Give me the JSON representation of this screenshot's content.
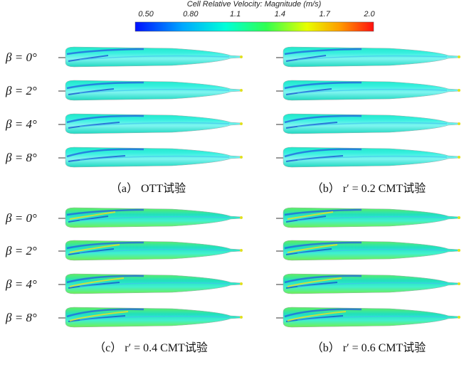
{
  "colorbar": {
    "title": "Cell Relative Velocity: Magnitude (m/s)",
    "tick_labels": [
      "0.50",
      "0.80",
      "1.1",
      "1.4",
      "1.7",
      "2.0"
    ]
  },
  "panels": [
    {
      "caption": "（a） OTT试验",
      "rows": [
        "β = 0°",
        "β = 2°",
        "β = 4°",
        "β = 8°"
      ]
    },
    {
      "caption": "（b） r′ = 0.2 CMT试验",
      "rows": [
        "β = 0°",
        "β = 2°",
        "β = 4°",
        "β = 8°"
      ]
    },
    {
      "caption": "（c） r′ = 0.4 CMT试验",
      "rows": [
        "β = 0°",
        "β = 2°",
        "β = 4°",
        "β = 8°"
      ]
    },
    {
      "caption": "（b） r′ = 0.6 CMT试验",
      "rows": [
        "β = 0°",
        "β = 2°",
        "β = 4°",
        "β = 8°"
      ]
    }
  ]
}
